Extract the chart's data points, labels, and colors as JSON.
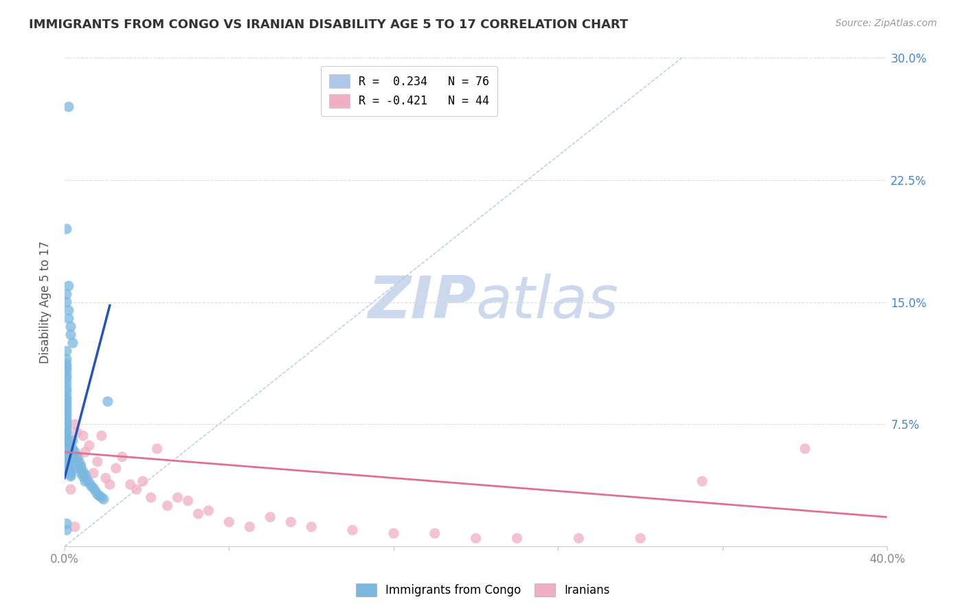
{
  "title": "IMMIGRANTS FROM CONGO VS IRANIAN DISABILITY AGE 5 TO 17 CORRELATION CHART",
  "source": "Source: ZipAtlas.com",
  "ylabel": "Disability Age 5 to 17",
  "xlim": [
    0.0,
    0.4
  ],
  "ylim": [
    0.0,
    0.3
  ],
  "xticks": [
    0.0,
    0.08,
    0.16,
    0.24,
    0.32,
    0.4
  ],
  "yticks": [
    0.0,
    0.075,
    0.15,
    0.225,
    0.3
  ],
  "ytick_labels_right": [
    "",
    "7.5%",
    "15.0%",
    "22.5%",
    "30.0%"
  ],
  "xtick_labels": [
    "0.0%",
    "",
    "",
    "",
    "",
    "40.0%"
  ],
  "legend_entries": [
    {
      "label": "R =  0.234   N = 76",
      "color": "#adc8ea"
    },
    {
      "label": "R = -0.421   N = 44",
      "color": "#f0afc3"
    }
  ],
  "congo_color": "#7ab8e0",
  "iranian_color": "#f0afc3",
  "congo_line_color": "#2255bb",
  "iranian_line_color": "#e07090",
  "dashed_line_color": "#aac4e4",
  "watermark_zip": "ZIP",
  "watermark_atlas": "atlas",
  "watermark_color": "#ccd8ee",
  "congo_points_x": [
    0.002,
    0.001,
    0.002,
    0.001,
    0.001,
    0.002,
    0.002,
    0.003,
    0.003,
    0.004,
    0.001,
    0.001,
    0.001,
    0.001,
    0.001,
    0.001,
    0.001,
    0.001,
    0.001,
    0.001,
    0.001,
    0.001,
    0.001,
    0.001,
    0.001,
    0.001,
    0.001,
    0.001,
    0.001,
    0.001,
    0.001,
    0.001,
    0.001,
    0.001,
    0.001,
    0.001,
    0.001,
    0.001,
    0.001,
    0.001,
    0.001,
    0.002,
    0.002,
    0.002,
    0.002,
    0.003,
    0.003,
    0.003,
    0.003,
    0.004,
    0.004,
    0.004,
    0.005,
    0.005,
    0.006,
    0.006,
    0.007,
    0.007,
    0.008,
    0.008,
    0.009,
    0.009,
    0.01,
    0.01,
    0.011,
    0.012,
    0.013,
    0.014,
    0.015,
    0.016,
    0.017,
    0.018,
    0.019,
    0.021,
    0.001,
    0.001
  ],
  "congo_points_y": [
    0.27,
    0.195,
    0.16,
    0.155,
    0.15,
    0.145,
    0.14,
    0.135,
    0.13,
    0.125,
    0.12,
    0.115,
    0.112,
    0.11,
    0.108,
    0.105,
    0.103,
    0.1,
    0.097,
    0.095,
    0.092,
    0.09,
    0.088,
    0.086,
    0.084,
    0.082,
    0.08,
    0.078,
    0.076,
    0.074,
    0.072,
    0.07,
    0.068,
    0.066,
    0.064,
    0.062,
    0.06,
    0.058,
    0.056,
    0.054,
    0.052,
    0.05,
    0.049,
    0.048,
    0.047,
    0.046,
    0.045,
    0.044,
    0.043,
    0.065,
    0.06,
    0.055,
    0.058,
    0.053,
    0.055,
    0.05,
    0.052,
    0.048,
    0.049,
    0.045,
    0.046,
    0.043,
    0.044,
    0.04,
    0.041,
    0.039,
    0.037,
    0.036,
    0.034,
    0.032,
    0.031,
    0.03,
    0.029,
    0.089,
    0.014,
    0.01
  ],
  "iranian_points_x": [
    0.001,
    0.002,
    0.003,
    0.004,
    0.005,
    0.006,
    0.007,
    0.008,
    0.009,
    0.01,
    0.012,
    0.014,
    0.016,
    0.018,
    0.02,
    0.022,
    0.025,
    0.028,
    0.032,
    0.035,
    0.038,
    0.042,
    0.045,
    0.05,
    0.055,
    0.06,
    0.065,
    0.07,
    0.08,
    0.09,
    0.1,
    0.11,
    0.12,
    0.14,
    0.16,
    0.18,
    0.2,
    0.22,
    0.25,
    0.28,
    0.31,
    0.36,
    0.003,
    0.005
  ],
  "iranian_points_y": [
    0.07,
    0.065,
    0.062,
    0.058,
    0.075,
    0.07,
    0.055,
    0.05,
    0.068,
    0.058,
    0.062,
    0.045,
    0.052,
    0.068,
    0.042,
    0.038,
    0.048,
    0.055,
    0.038,
    0.035,
    0.04,
    0.03,
    0.06,
    0.025,
    0.03,
    0.028,
    0.02,
    0.022,
    0.015,
    0.012,
    0.018,
    0.015,
    0.012,
    0.01,
    0.008,
    0.008,
    0.005,
    0.005,
    0.005,
    0.005,
    0.04,
    0.06,
    0.035,
    0.012
  ],
  "congo_line_x": [
    0.0,
    0.022
  ],
  "congo_line_y": [
    0.042,
    0.148
  ],
  "iranian_line_x": [
    0.0,
    0.4
  ],
  "iranian_line_y": [
    0.058,
    0.018
  ],
  "diagonal_line_x": [
    0.0,
    0.3
  ],
  "diagonal_line_y": [
    0.0,
    0.3
  ]
}
